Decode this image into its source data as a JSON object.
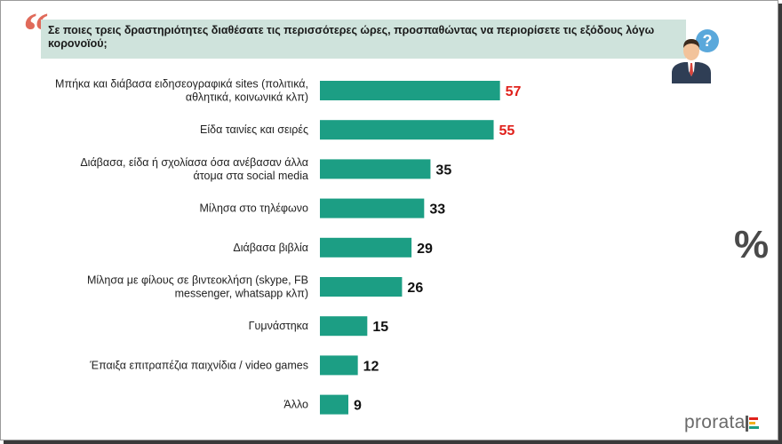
{
  "question": "Σε ποιες τρεις δραστηριότητες διαθέσατε τις περισσότερες ώρες, προσπαθώντας να περιορίσετε τις εξόδους λόγω κορονοϊού;",
  "quote_mark": "“",
  "percent_symbol": "%",
  "brand": "prorata",
  "colors": {
    "bar": "#1c9e84",
    "highlight_value": "#e0211b",
    "value": "#111111",
    "question_bg": "#cfe3dc"
  },
  "icons": {
    "person": "person-with-question-icon",
    "percent": "percent-icon"
  },
  "chart_data": {
    "type": "bar",
    "orientation": "horizontal",
    "categories": [
      [
        "Μπήκα και διάβασα ειδησεογραφικά sites (πολιτικά,",
        "αθλητικά, κοινωνικά κλπ)"
      ],
      [
        "Είδα ταινίες και σειρές"
      ],
      [
        "Διάβασα, είδα ή σχολίασα όσα ανέβασαν άλλα",
        "άτομα στα social media"
      ],
      [
        "Μίλησα στο τηλέφωνο"
      ],
      [
        "Διάβασα βιβλία"
      ],
      [
        "Μίλησα με φίλους σε βιντεοκλήση (skype, FB",
        "messenger, whatsapp κλπ)"
      ],
      [
        "Γυμνάστηκα"
      ],
      [
        "Έπαιξα επιτραπέζια παιχνίδια / video games"
      ],
      [
        "Άλλο"
      ]
    ],
    "values": [
      57,
      55,
      35,
      33,
      29,
      26,
      15,
      12,
      9
    ],
    "highlighted": [
      true,
      true,
      false,
      false,
      false,
      false,
      false,
      false,
      false
    ],
    "xlim": [
      0,
      60
    ],
    "grid": false,
    "legend": "none"
  }
}
